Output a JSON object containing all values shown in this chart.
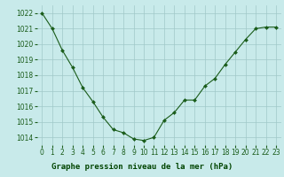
{
  "x": [
    0,
    1,
    2,
    3,
    4,
    5,
    6,
    7,
    8,
    9,
    10,
    11,
    12,
    13,
    14,
    15,
    16,
    17,
    18,
    19,
    20,
    21,
    22,
    23
  ],
  "y": [
    1022,
    1021,
    1019.6,
    1018.5,
    1017.2,
    1016.3,
    1015.3,
    1014.5,
    1014.3,
    1013.9,
    1013.8,
    1014.0,
    1015.1,
    1015.6,
    1016.4,
    1016.4,
    1017.3,
    1017.8,
    1018.7,
    1019.5,
    1020.3,
    1021.0,
    1021.1,
    1021.1
  ],
  "ylim": [
    1013.5,
    1022.5
  ],
  "yticks": [
    1014,
    1015,
    1016,
    1017,
    1018,
    1019,
    1020,
    1021,
    1022
  ],
  "xticks": [
    0,
    1,
    2,
    3,
    4,
    5,
    6,
    7,
    8,
    9,
    10,
    11,
    12,
    13,
    14,
    15,
    16,
    17,
    18,
    19,
    20,
    21,
    22,
    23
  ],
  "line_color": "#1a5c1a",
  "marker_color": "#1a5c1a",
  "bg_color": "#c8eaea",
  "grid_color": "#a0c8c8",
  "xlabel": "Graphe pression niveau de la mer (hPa)",
  "xlabel_color": "#004400",
  "xlabel_bg": "#5aaa5a",
  "tick_color": "#1a5c1a",
  "tick_fontsize": 5.5,
  "xlabel_fontsize": 6.5
}
